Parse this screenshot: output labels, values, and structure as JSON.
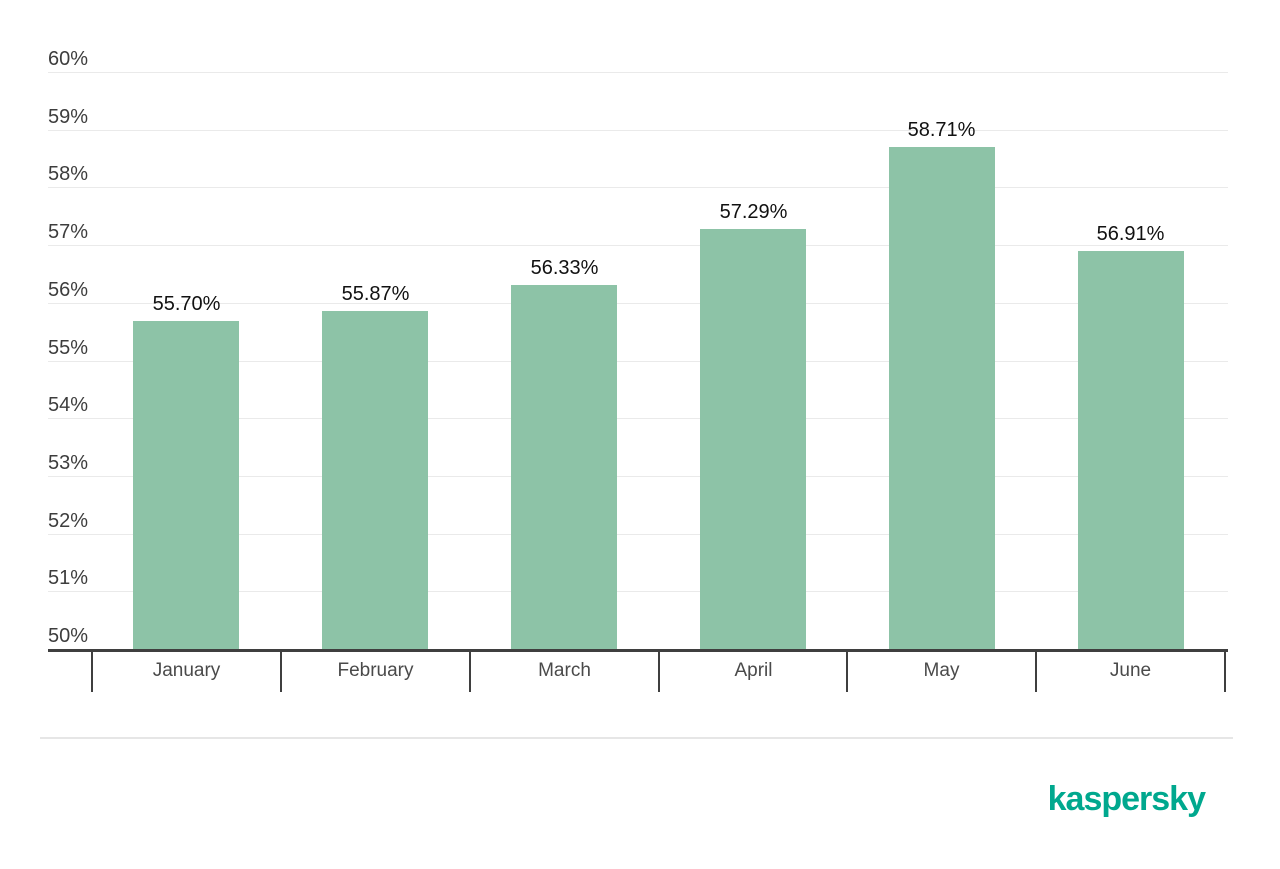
{
  "chart_data": {
    "type": "bar",
    "title": "",
    "xlabel": "",
    "ylabel": "",
    "categories": [
      "January",
      "February",
      "March",
      "April",
      "May",
      "June"
    ],
    "values": [
      55.7,
      55.87,
      56.33,
      57.29,
      58.71,
      56.91
    ],
    "value_labels": [
      "55.70%",
      "55.87%",
      "56.33%",
      "57.29%",
      "58.71%",
      "56.91%"
    ],
    "ylim": [
      50,
      60
    ],
    "y_tick_step": 1,
    "y_tick_labels": [
      "50%",
      "51%",
      "52%",
      "53%",
      "54%",
      "55%",
      "56%",
      "57%",
      "58%",
      "59%",
      "60%"
    ],
    "grid": true,
    "legend_position": "none",
    "colors": {
      "bar": "#8dc3a7",
      "gridline": "#eaeaea",
      "axis": "#3f3f3f",
      "y_tick_label": "#3d3d3d",
      "x_tick_label": "#4a4a4a",
      "value_label": "#111111"
    }
  },
  "footer": {
    "logo_text": "kaspersky",
    "logo_color": "#00a88e"
  }
}
